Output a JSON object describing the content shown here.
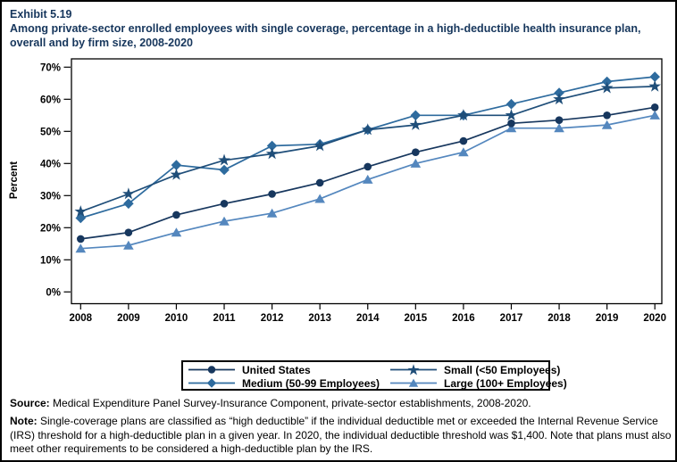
{
  "title": {
    "exhibit": "Exhibit 5.19",
    "text": "Among private-sector enrolled employees with single coverage, percentage in a high-deductible health insurance plan, overall and by firm size, 2008-2020"
  },
  "chart_data": {
    "type": "line",
    "title": "",
    "xlabel": "",
    "ylabel": "Percent",
    "x": [
      2008,
      2009,
      2010,
      2011,
      2012,
      2013,
      2014,
      2015,
      2016,
      2017,
      2018,
      2019,
      2020
    ],
    "ylim": [
      0,
      70
    ],
    "yticks": [
      0,
      10,
      20,
      30,
      40,
      50,
      60,
      70
    ],
    "ytick_labels": [
      "0%",
      "10%",
      "20%",
      "30%",
      "40%",
      "50%",
      "60%",
      "70%"
    ],
    "grid": false,
    "legend_position": "bottom",
    "series": [
      {
        "name": "United States",
        "marker": "circle",
        "color": "#17375E",
        "values": [
          16.5,
          18.5,
          24,
          27.5,
          30.5,
          34,
          39,
          43.5,
          47,
          52.5,
          53.5,
          55,
          57.5
        ]
      },
      {
        "name": "Small (<50 Employees)",
        "marker": "star",
        "color": "#1F4E79",
        "values": [
          25,
          30.5,
          36.5,
          41,
          43,
          45.5,
          50.5,
          52,
          55,
          55,
          60,
          63.5,
          64
        ]
      },
      {
        "name": "Medium (50-99 Employees)",
        "marker": "diamond",
        "color": "#2E6B9E",
        "values": [
          23,
          27.5,
          39.5,
          38,
          45.5,
          46,
          50.5,
          55,
          55,
          58.5,
          62,
          65.5,
          67
        ]
      },
      {
        "name": "Large (100+ Employees)",
        "marker": "triangle",
        "color": "#5487BE",
        "values": [
          13.5,
          14.5,
          18.5,
          22,
          24.5,
          29,
          35,
          40,
          43.5,
          51,
          51,
          52,
          55
        ]
      }
    ]
  },
  "footer": {
    "source_label": "Source:",
    "source_text": " Medical Expenditure Panel Survey-Insurance Component, private-sector establishments, 2008-2020.",
    "note_label": "Note:",
    "note_text": " Single-coverage plans are classified as “high deductible” if the individual deductible met or exceeded the Internal Revenue Service (IRS) threshold for a high-deductible plan in a given year. In 2020, the individual deductible threshold was $1,400. Note that plans must also meet other requirements to be considered a high-deductible plan by the IRS."
  }
}
